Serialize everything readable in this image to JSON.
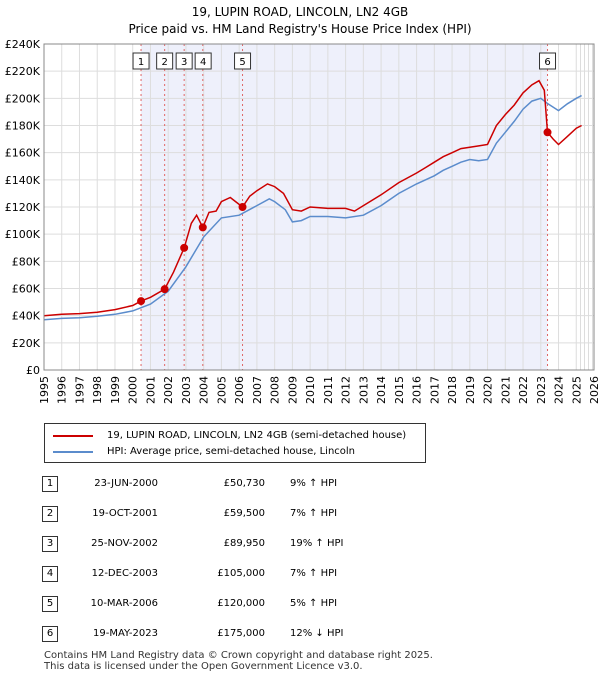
{
  "chart_data": {
    "type": "line",
    "title": "19, LUPIN ROAD, LINCOLN, LN2 4GB",
    "subtitle": "Price paid vs. HM Land Registry's House Price Index (HPI)",
    "xlim": [
      1995,
      2026
    ],
    "ylim": [
      0,
      240000
    ],
    "x_ticks": [
      1995,
      1996,
      1997,
      1998,
      1999,
      2000,
      2001,
      2002,
      2003,
      2004,
      2005,
      2006,
      2007,
      2008,
      2009,
      2010,
      2011,
      2012,
      2013,
      2014,
      2015,
      2016,
      2017,
      2018,
      2019,
      2020,
      2021,
      2022,
      2023,
      2024,
      2025,
      2026
    ],
    "y_ticks": [
      {
        "value": 0,
        "label": "£0"
      },
      {
        "value": 20000,
        "label": "£20K"
      },
      {
        "value": 40000,
        "label": "£40K"
      },
      {
        "value": 60000,
        "label": "£60K"
      },
      {
        "value": 80000,
        "label": "£80K"
      },
      {
        "value": 100000,
        "label": "£100K"
      },
      {
        "value": 120000,
        "label": "£120K"
      },
      {
        "value": 140000,
        "label": "£140K"
      },
      {
        "value": 160000,
        "label": "£160K"
      },
      {
        "value": 180000,
        "label": "£180K"
      },
      {
        "value": 200000,
        "label": "£200K"
      },
      {
        "value": 220000,
        "label": "£220K"
      },
      {
        "value": 240000,
        "label": "£240K"
      }
    ],
    "shaded_range": [
      2000.47,
      2023.38
    ],
    "future_hatch_from": 2024.9,
    "series": [
      {
        "name": "19, LUPIN ROAD, LINCOLN, LN2 4GB (semi-detached house)",
        "color": "#cc0000",
        "points": [
          [
            1995,
            40000
          ],
          [
            1996,
            41000
          ],
          [
            1997,
            41500
          ],
          [
            1998,
            42500
          ],
          [
            1999,
            44500
          ],
          [
            2000,
            47500
          ],
          [
            2000.47,
            50730
          ],
          [
            2001,
            53500
          ],
          [
            2001.8,
            59500
          ],
          [
            2002.3,
            72000
          ],
          [
            2002.9,
            89950
          ],
          [
            2003.3,
            108000
          ],
          [
            2003.6,
            114000
          ],
          [
            2003.95,
            105000
          ],
          [
            2004.3,
            116000
          ],
          [
            2004.7,
            117000
          ],
          [
            2005,
            124000
          ],
          [
            2005.5,
            127000
          ],
          [
            2006.19,
            120000
          ],
          [
            2006.6,
            128000
          ],
          [
            2007,
            132000
          ],
          [
            2007.6,
            137000
          ],
          [
            2008,
            135000
          ],
          [
            2008.5,
            130000
          ],
          [
            2009,
            118000
          ],
          [
            2009.5,
            117000
          ],
          [
            2010,
            120000
          ],
          [
            2011,
            119000
          ],
          [
            2012,
            119000
          ],
          [
            2012.5,
            117000
          ],
          [
            2013,
            121000
          ],
          [
            2014,
            129000
          ],
          [
            2015,
            138000
          ],
          [
            2016,
            145000
          ],
          [
            2016.5,
            149000
          ],
          [
            2017,
            153000
          ],
          [
            2017.5,
            157000
          ],
          [
            2018,
            160000
          ],
          [
            2018.5,
            163000
          ],
          [
            2019,
            164000
          ],
          [
            2019.5,
            165000
          ],
          [
            2020,
            166000
          ],
          [
            2020.5,
            180000
          ],
          [
            2021,
            188000
          ],
          [
            2021.5,
            195000
          ],
          [
            2022,
            204000
          ],
          [
            2022.5,
            210000
          ],
          [
            2022.9,
            213000
          ],
          [
            2023.2,
            206000
          ],
          [
            2023.38,
            175000
          ],
          [
            2023.7,
            170000
          ],
          [
            2024,
            166000
          ],
          [
            2024.5,
            172000
          ],
          [
            2025,
            178000
          ],
          [
            2025.3,
            180000
          ]
        ]
      },
      {
        "name": "HPI: Average price, semi-detached house, Lincoln",
        "color": "#5b8ccc",
        "points": [
          [
            1995,
            37000
          ],
          [
            1996,
            38000
          ],
          [
            1997,
            38500
          ],
          [
            1998,
            39500
          ],
          [
            1999,
            41000
          ],
          [
            2000,
            43500
          ],
          [
            2001,
            48500
          ],
          [
            2002,
            58000
          ],
          [
            2003,
            76000
          ],
          [
            2004,
            98000
          ],
          [
            2005,
            112000
          ],
          [
            2006,
            114000
          ],
          [
            2007,
            121000
          ],
          [
            2007.7,
            126000
          ],
          [
            2008,
            124000
          ],
          [
            2008.6,
            118000
          ],
          [
            2009,
            109000
          ],
          [
            2009.5,
            110000
          ],
          [
            2010,
            113000
          ],
          [
            2011,
            113000
          ],
          [
            2012,
            112000
          ],
          [
            2013,
            114000
          ],
          [
            2014,
            121000
          ],
          [
            2015,
            130000
          ],
          [
            2016,
            137000
          ],
          [
            2017,
            143000
          ],
          [
            2017.5,
            147000
          ],
          [
            2018,
            150000
          ],
          [
            2018.5,
            153000
          ],
          [
            2019,
            155000
          ],
          [
            2019.5,
            154000
          ],
          [
            2020,
            155000
          ],
          [
            2020.5,
            167000
          ],
          [
            2021,
            175000
          ],
          [
            2021.5,
            183000
          ],
          [
            2022,
            192000
          ],
          [
            2022.5,
            198000
          ],
          [
            2023,
            200000
          ],
          [
            2023.4,
            196000
          ],
          [
            2024,
            191000
          ],
          [
            2024.5,
            196000
          ],
          [
            2025,
            200000
          ],
          [
            2025.3,
            202000
          ]
        ]
      }
    ],
    "sales": [
      {
        "label": "1",
        "x": 2000.47,
        "y": 50730
      },
      {
        "label": "2",
        "x": 2001.8,
        "y": 59500
      },
      {
        "label": "3",
        "x": 2002.9,
        "y": 89950
      },
      {
        "label": "4",
        "x": 2003.95,
        "y": 105000
      },
      {
        "label": "5",
        "x": 2006.19,
        "y": 120000
      },
      {
        "label": "6",
        "x": 2023.38,
        "y": 175000
      }
    ]
  },
  "legend": {
    "property": "19, LUPIN ROAD, LINCOLN, LN2 4GB (semi-detached house)",
    "hpi": "HPI: Average price, semi-detached house, Lincoln"
  },
  "transactions": [
    {
      "num": "1",
      "date": "23-JUN-2000",
      "price": "£50,730",
      "pct": "9% ↑ HPI"
    },
    {
      "num": "2",
      "date": "19-OCT-2001",
      "price": "£59,500",
      "pct": "7% ↑ HPI"
    },
    {
      "num": "3",
      "date": "25-NOV-2002",
      "price": "£89,950",
      "pct": "19% ↑ HPI"
    },
    {
      "num": "4",
      "date": "12-DEC-2003",
      "price": "£105,000",
      "pct": "7% ↑ HPI"
    },
    {
      "num": "5",
      "date": "10-MAR-2006",
      "price": "£120,000",
      "pct": "5% ↑ HPI"
    },
    {
      "num": "6",
      "date": "19-MAY-2023",
      "price": "£175,000",
      "pct": "12% ↓ HPI"
    }
  ],
  "footer": {
    "line1": "Contains HM Land Registry data © Crown copyright and database right 2025.",
    "line2": "This data is licensed under the Open Government Licence v3.0."
  }
}
